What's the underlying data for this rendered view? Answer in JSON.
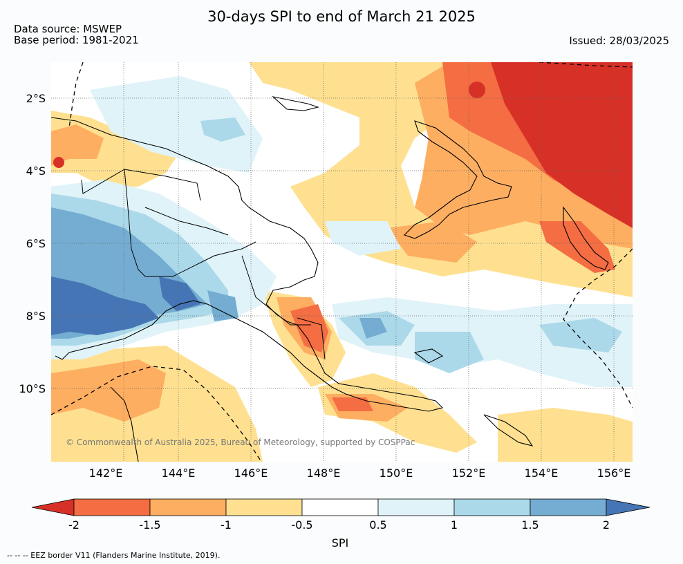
{
  "title": "30-days SPI to end of March 21 2025",
  "data_source": "Data source: MSWEP",
  "base_period": "Base period: 1981-2021",
  "issued": "Issued: 28/03/2025",
  "copyright": "© Commonwealth of Australia 2025, Bureau of Meteorology, supported by COSPPac",
  "footnote": "--  --  -- EEZ border V11 (Flanders Marine Institute, 2019).",
  "map": {
    "lon_range": [
      140.5,
      156.5
    ],
    "lat_range": [
      -12.0,
      -1.0
    ],
    "x_ticks": [
      "142°E",
      "144°E",
      "146°E",
      "148°E",
      "150°E",
      "152°E",
      "154°E",
      "156°E"
    ],
    "y_ticks": [
      "2°S",
      "4°S",
      "6°S",
      "8°S",
      "10°S"
    ],
    "grid": "dotted",
    "border_style": "dashed"
  },
  "colorbar": {
    "label": "SPI",
    "ticks": [
      "-2",
      "-1.5",
      "-1",
      "-0.5",
      "0.5",
      "1",
      "1.5",
      "2"
    ],
    "colors": [
      "#d73027",
      "#f46d43",
      "#fdae61",
      "#fee090",
      "#ffffff",
      "#e0f3f8",
      "#abd9e9",
      "#74add1",
      "#4575b4"
    ]
  }
}
